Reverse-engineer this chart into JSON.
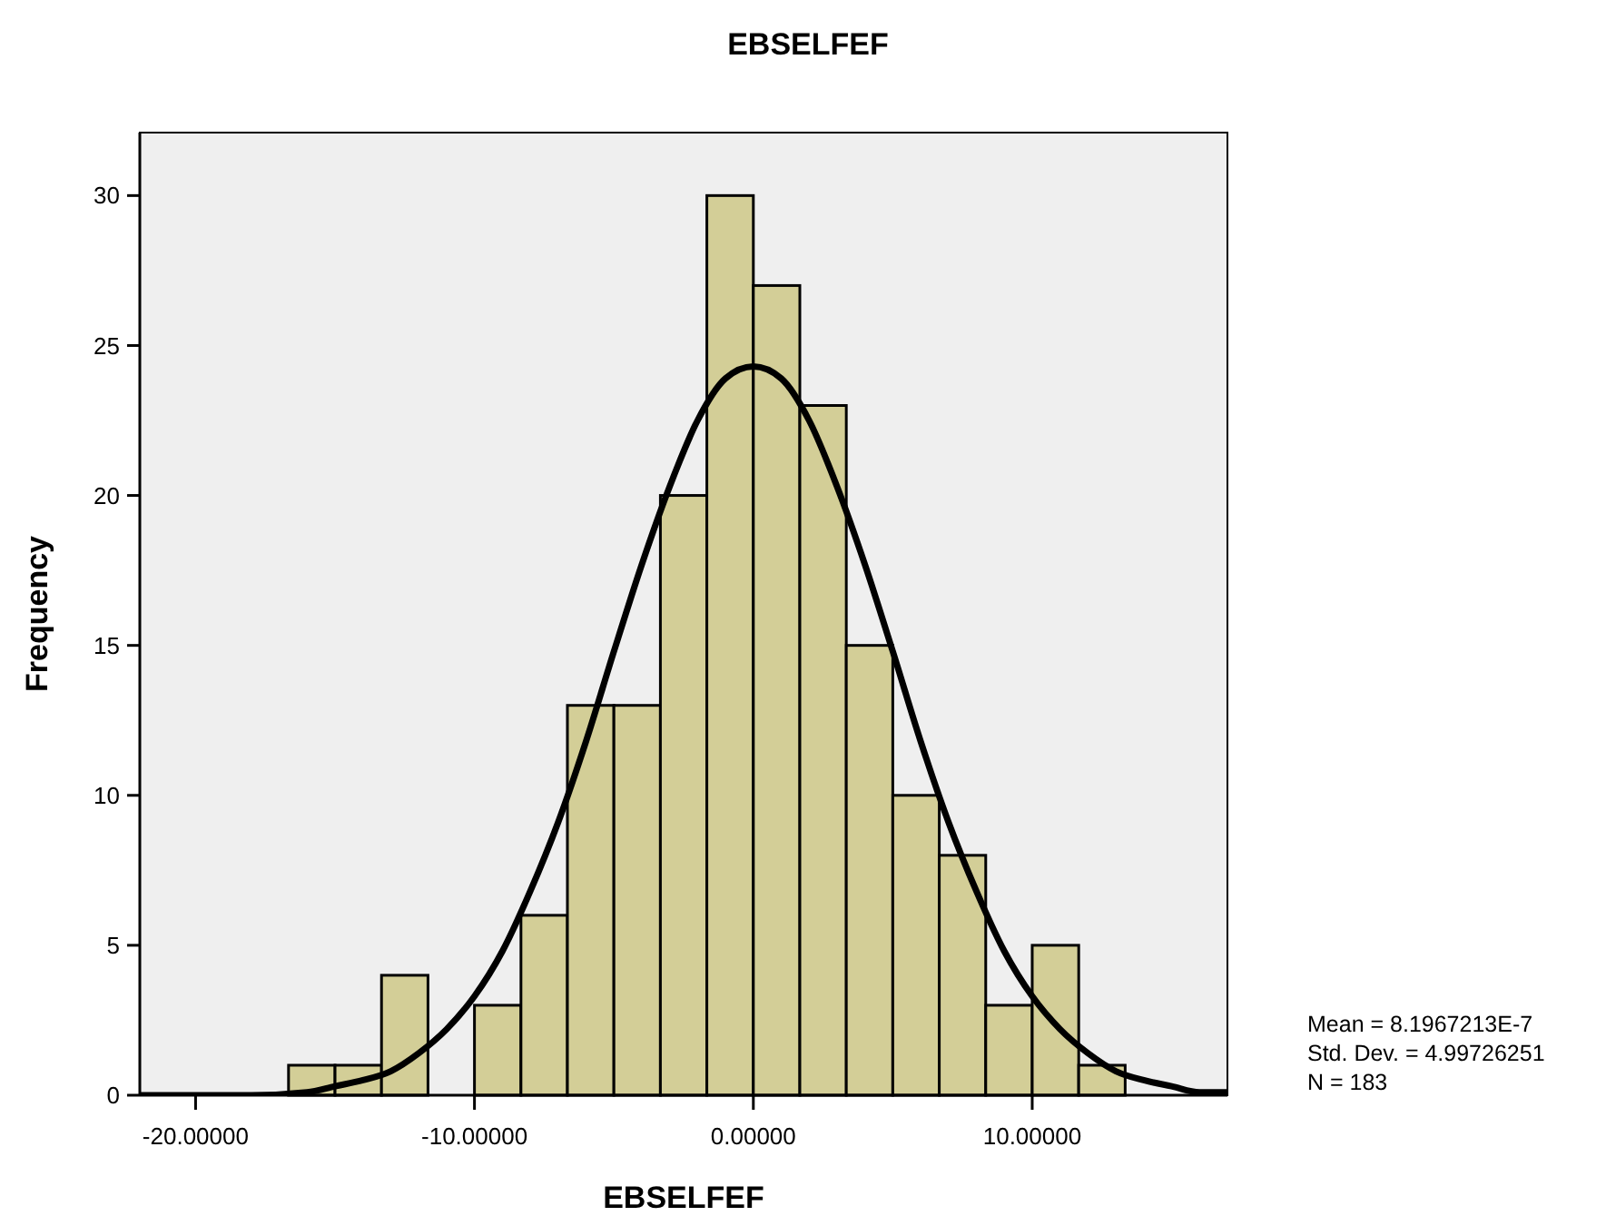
{
  "chart_data": {
    "type": "histogram",
    "title": "EBSELFEF",
    "xlabel": "EBSELFEF",
    "ylabel": "Frequency",
    "bins": [
      -16.667,
      -15,
      -13.333,
      -11.667,
      -10,
      -8.333,
      -6.667,
      -5,
      -3.333,
      -1.667,
      0,
      1.667,
      3.333,
      5,
      6.667,
      8.333,
      10,
      11.667,
      13.333
    ],
    "values": [
      1,
      1,
      4,
      0,
      3,
      6,
      13,
      13,
      20,
      30,
      27,
      23,
      15,
      10,
      8,
      3,
      5,
      1
    ],
    "color": "#d3ce97",
    "series": [
      {
        "type": "line",
        "color": "#000000",
        "x": [
          -22,
          -20,
          -18,
          -16,
          -15,
          -14,
          -13,
          -12,
          -11,
          -10,
          -9,
          -8,
          -7,
          -6,
          -5,
          -4,
          -3,
          -2,
          -1,
          0,
          1,
          2,
          3,
          4,
          5,
          6,
          7,
          8,
          9,
          10,
          11,
          12,
          13,
          14,
          15,
          16,
          17
        ],
        "values": [
          0,
          0,
          0,
          0.1,
          0.3,
          0.5,
          0.8,
          1.4,
          2.2,
          3.3,
          4.8,
          6.8,
          9.1,
          11.8,
          14.8,
          17.7,
          20.3,
          22.5,
          23.9,
          24.3,
          23.9,
          22.5,
          20.3,
          17.7,
          14.8,
          11.8,
          9.1,
          6.8,
          4.8,
          3.3,
          2.2,
          1.4,
          0.8,
          0.5,
          0.3,
          0.1,
          0.1
        ]
      }
    ],
    "xlim": [
      -22,
      17
    ],
    "ylim": [
      0,
      32.1
    ],
    "xticks": [
      {
        "value": -20,
        "label": "-20.00000"
      },
      {
        "value": -10,
        "label": "-10.00000"
      },
      {
        "value": 0,
        "label": "0.00000"
      },
      {
        "value": 10,
        "label": "10.00000"
      }
    ],
    "yticks": [
      0,
      5,
      10,
      15,
      20,
      25,
      30
    ],
    "grid": false,
    "annotations": [
      "Mean = 8.1967213E-7",
      "Std. Dev. = 4.99726251",
      "N = 183"
    ]
  }
}
